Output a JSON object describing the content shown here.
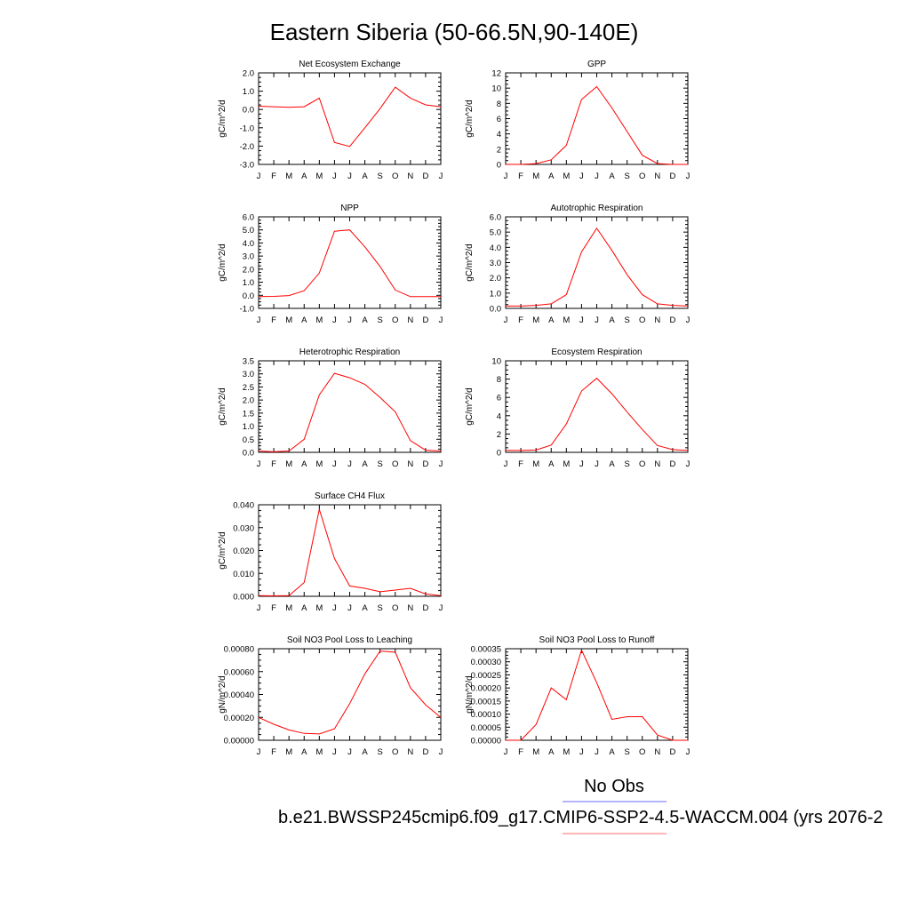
{
  "figure": {
    "title": "Eastern Siberia (50-66.5N,90-140E)",
    "legend": {
      "obs_label": "No Obs",
      "obs_color": "#6b6bff",
      "case_label": "b.e21.BWSSP245cmip6.f09_g17.CMIP6-SSP2-4.5-WACCM.004 (yrs 2076-2",
      "case_color": "#ff6b6b"
    }
  },
  "chart_data": [
    {
      "type": "line",
      "title": "Net Ecosystem Exchange",
      "ylabel": "gC/m^2/d",
      "ylim": [
        -3.0,
        2.0
      ],
      "yticks": [
        "-3.0",
        "-2.0",
        "-1.0",
        "0.0",
        "1.0",
        "2.0"
      ],
      "x": [
        "J",
        "F",
        "M",
        "A",
        "M",
        "J",
        "J",
        "A",
        "S",
        "O",
        "N",
        "D",
        "J"
      ],
      "series": [
        {
          "color": "#ff0000",
          "values": [
            0.18,
            0.15,
            0.12,
            0.15,
            0.62,
            -1.8,
            -2.02,
            -1.0,
            0.05,
            1.22,
            0.62,
            0.25,
            0.15
          ]
        }
      ]
    },
    {
      "type": "line",
      "title": "GPP",
      "ylabel": "gC/m^2/d",
      "ylim": [
        0,
        12
      ],
      "yticks": [
        "0",
        "2",
        "4",
        "6",
        "8",
        "10",
        "12"
      ],
      "x": [
        "J",
        "F",
        "M",
        "A",
        "M",
        "J",
        "J",
        "A",
        "S",
        "O",
        "N",
        "D",
        "J"
      ],
      "series": [
        {
          "color": "#ff0000",
          "values": [
            0.0,
            0.0,
            0.1,
            0.6,
            2.5,
            8.5,
            10.2,
            7.4,
            4.3,
            1.2,
            0.1,
            0.0,
            0.0
          ]
        }
      ]
    },
    {
      "type": "line",
      "title": "NPP",
      "ylabel": "gC/m^2/d",
      "ylim": [
        -1.0,
        6.0
      ],
      "yticks": [
        "-1.0",
        "0.0",
        "1.0",
        "2.0",
        "3.0",
        "4.0",
        "5.0",
        "6.0"
      ],
      "x": [
        "J",
        "F",
        "M",
        "A",
        "M",
        "J",
        "J",
        "A",
        "S",
        "O",
        "N",
        "D",
        "J"
      ],
      "series": [
        {
          "color": "#ff0000",
          "values": [
            -0.1,
            -0.08,
            -0.02,
            0.35,
            1.7,
            4.9,
            5.0,
            3.7,
            2.2,
            0.4,
            -0.1,
            -0.1,
            -0.1
          ]
        }
      ]
    },
    {
      "type": "line",
      "title": "Autotrophic Respiration",
      "ylabel": "gC/m^2/d",
      "ylim": [
        0.0,
        6.0
      ],
      "yticks": [
        "0.0",
        "1.0",
        "2.0",
        "3.0",
        "4.0",
        "5.0",
        "6.0"
      ],
      "x": [
        "J",
        "F",
        "M",
        "A",
        "M",
        "J",
        "J",
        "A",
        "S",
        "O",
        "N",
        "D",
        "J"
      ],
      "series": [
        {
          "color": "#ff0000",
          "values": [
            0.15,
            0.15,
            0.2,
            0.3,
            0.9,
            3.7,
            5.25,
            3.8,
            2.2,
            0.9,
            0.3,
            0.2,
            0.15
          ]
        }
      ]
    },
    {
      "type": "line",
      "title": "Heterotrophic Respiration",
      "ylabel": "gC/m^2/d",
      "ylim": [
        0.0,
        3.5
      ],
      "yticks": [
        "0.0",
        "0.5",
        "1.0",
        "1.5",
        "2.0",
        "2.5",
        "3.0",
        "3.5"
      ],
      "x": [
        "J",
        "F",
        "M",
        "A",
        "M",
        "J",
        "J",
        "A",
        "S",
        "O",
        "N",
        "D",
        "J"
      ],
      "series": [
        {
          "color": "#ff0000",
          "values": [
            0.05,
            0.02,
            0.05,
            0.5,
            2.2,
            3.02,
            2.85,
            2.6,
            2.1,
            1.55,
            0.45,
            0.08,
            0.05
          ]
        }
      ]
    },
    {
      "type": "line",
      "title": "Ecosystem Respiration",
      "ylabel": "gC/m^2/d",
      "ylim": [
        0,
        10
      ],
      "yticks": [
        "0",
        "2",
        "4",
        "6",
        "8",
        "10"
      ],
      "x": [
        "J",
        "F",
        "M",
        "A",
        "M",
        "J",
        "J",
        "A",
        "S",
        "O",
        "N",
        "D",
        "J"
      ],
      "series": [
        {
          "color": "#ff0000",
          "values": [
            0.2,
            0.2,
            0.25,
            0.8,
            3.1,
            6.7,
            8.1,
            6.4,
            4.4,
            2.5,
            0.75,
            0.3,
            0.2
          ]
        }
      ]
    },
    {
      "type": "line",
      "title": "Surface CH4 Flux",
      "ylabel": "gC/m^2/d",
      "ylim": [
        0.0,
        0.04
      ],
      "yticks": [
        "0.000",
        "0.010",
        "0.020",
        "0.030",
        "0.040"
      ],
      "x": [
        "J",
        "F",
        "M",
        "A",
        "M",
        "J",
        "J",
        "A",
        "S",
        "O",
        "N",
        "D",
        "J"
      ],
      "series": [
        {
          "color": "#ff0000",
          "values": [
            0.0003,
            0.0002,
            0.0003,
            0.006,
            0.038,
            0.0165,
            0.0045,
            0.0035,
            0.002,
            0.0027,
            0.0035,
            0.001,
            0.0003
          ]
        }
      ]
    },
    {
      "type": "line",
      "title": "Soil NO3 Pool Loss to Leaching",
      "ylabel": "gN/m^2/d",
      "ylim": [
        0.0,
        0.0008
      ],
      "yticks": [
        "0.00000",
        "0.00020",
        "0.00040",
        "0.00060",
        "0.00080"
      ],
      "x": [
        "J",
        "F",
        "M",
        "A",
        "M",
        "J",
        "J",
        "A",
        "S",
        "O",
        "N",
        "D",
        "J"
      ],
      "series": [
        {
          "color": "#ff0000",
          "values": [
            0.0002,
            0.00014,
            9e-05,
            6e-05,
            5.5e-05,
            0.0001,
            0.00032,
            0.00058,
            0.00078,
            0.00077,
            0.00046,
            0.00031,
            0.0002
          ]
        }
      ]
    },
    {
      "type": "line",
      "title": "Soil NO3 Pool Loss to Runoff",
      "ylabel": "gN/m^2/d",
      "ylim": [
        0.0,
        0.00035
      ],
      "yticks": [
        "0.00000",
        "0.00005",
        "0.00010",
        "0.00015",
        "0.00020",
        "0.00025",
        "0.00030",
        "0.00035"
      ],
      "x": [
        "J",
        "F",
        "M",
        "A",
        "M",
        "J",
        "J",
        "A",
        "S",
        "O",
        "N",
        "D",
        "J"
      ],
      "series": [
        {
          "color": "#ff0000",
          "values": [
            0.0,
            0.0,
            6e-05,
            0.0002,
            0.000155,
            0.000345,
            0.00022,
            8e-05,
            9e-05,
            9e-05,
            2e-05,
            0.0,
            0.0
          ]
        }
      ]
    }
  ]
}
